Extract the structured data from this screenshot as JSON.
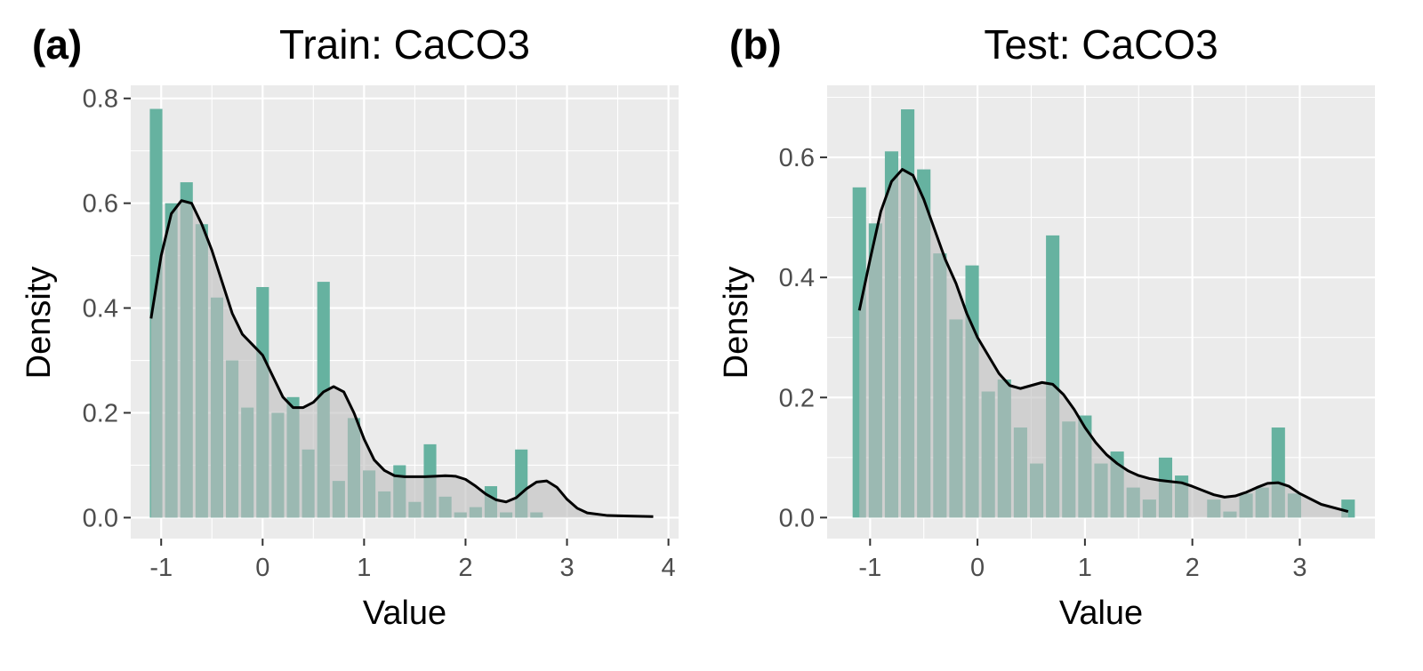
{
  "chart_data": [
    {
      "type": "bar",
      "tag": "(a)",
      "title": "Train: CaCO3",
      "xlabel": "Value",
      "ylabel": "Density",
      "xlim": [
        -1.3,
        4.1
      ],
      "ylim": [
        -0.04,
        0.825
      ],
      "xticks": [
        -1,
        0,
        1,
        2,
        3,
        4
      ],
      "xtick_labels": [
        "-1",
        "0",
        "1",
        "2",
        "3",
        "4"
      ],
      "yticks": [
        0,
        0.2,
        0.4,
        0.6,
        0.8
      ],
      "ytick_labels": [
        "0.0",
        "0.2",
        "0.4",
        "0.6",
        "0.8"
      ],
      "bin_width": 0.15,
      "bar_color": "#66b2a0",
      "fill_color": "#bebebe",
      "line_color": "#000000",
      "histogram": {
        "x": [
          -1.05,
          -0.9,
          -0.75,
          -0.6,
          -0.45,
          -0.3,
          -0.15,
          0.0,
          0.15,
          0.3,
          0.45,
          0.6,
          0.75,
          0.9,
          1.05,
          1.2,
          1.35,
          1.5,
          1.65,
          1.8,
          1.95,
          2.1,
          2.25,
          2.4,
          2.55,
          2.7,
          2.85,
          3.0
        ],
        "values": [
          0.78,
          0.6,
          0.64,
          0.56,
          0.42,
          0.3,
          0.21,
          0.44,
          0.2,
          0.23,
          0.13,
          0.45,
          0.07,
          0.19,
          0.09,
          0.05,
          0.1,
          0.03,
          0.14,
          0.04,
          0.01,
          0.02,
          0.06,
          0.01,
          0.13,
          0.01,
          0.0,
          0.0
        ]
      },
      "density": {
        "x": [
          -1.1,
          -1.0,
          -0.9,
          -0.8,
          -0.7,
          -0.6,
          -0.5,
          -0.4,
          -0.3,
          -0.2,
          -0.1,
          0.0,
          0.1,
          0.2,
          0.3,
          0.4,
          0.5,
          0.6,
          0.7,
          0.8,
          0.9,
          1.0,
          1.1,
          1.2,
          1.3,
          1.4,
          1.5,
          1.6,
          1.7,
          1.8,
          1.9,
          2.0,
          2.1,
          2.2,
          2.3,
          2.4,
          2.5,
          2.6,
          2.7,
          2.8,
          2.9,
          3.0,
          3.1,
          3.2,
          3.4,
          3.6,
          3.85
        ],
        "values": [
          0.38,
          0.5,
          0.58,
          0.605,
          0.6,
          0.56,
          0.51,
          0.45,
          0.39,
          0.35,
          0.33,
          0.31,
          0.27,
          0.23,
          0.21,
          0.21,
          0.22,
          0.24,
          0.25,
          0.24,
          0.2,
          0.15,
          0.11,
          0.09,
          0.08,
          0.078,
          0.078,
          0.078,
          0.079,
          0.08,
          0.079,
          0.073,
          0.06,
          0.045,
          0.034,
          0.03,
          0.038,
          0.055,
          0.068,
          0.07,
          0.058,
          0.035,
          0.018,
          0.009,
          0.004,
          0.003,
          0.002
        ]
      }
    },
    {
      "type": "bar",
      "tag": "(b)",
      "title": "Test: CaCO3",
      "xlabel": "Value",
      "ylabel": "Density",
      "xlim": [
        -1.4,
        3.7
      ],
      "ylim": [
        -0.035,
        0.72
      ],
      "xticks": [
        -1,
        0,
        1,
        2,
        3
      ],
      "xtick_labels": [
        "-1",
        "0",
        "1",
        "2",
        "3"
      ],
      "yticks": [
        0,
        0.2,
        0.4,
        0.6
      ],
      "ytick_labels": [
        "0.0",
        "0.2",
        "0.4",
        "0.6"
      ],
      "bin_width": 0.15,
      "bar_color": "#66b2a0",
      "fill_color": "#bebebe",
      "line_color": "#000000",
      "histogram": {
        "x": [
          -1.1,
          -0.95,
          -0.8,
          -0.65,
          -0.5,
          -0.35,
          -0.2,
          -0.05,
          0.1,
          0.25,
          0.4,
          0.55,
          0.7,
          0.85,
          1.0,
          1.15,
          1.3,
          1.45,
          1.6,
          1.75,
          1.9,
          2.05,
          2.2,
          2.35,
          2.5,
          2.65,
          2.8,
          2.95,
          3.1,
          3.25,
          3.45
        ],
        "values": [
          0.55,
          0.49,
          0.61,
          0.68,
          0.58,
          0.44,
          0.33,
          0.42,
          0.21,
          0.23,
          0.15,
          0.09,
          0.47,
          0.16,
          0.17,
          0.09,
          0.11,
          0.05,
          0.03,
          0.1,
          0.07,
          0.0,
          0.03,
          0.01,
          0.04,
          0.05,
          0.15,
          0.04,
          0.0,
          0.0,
          0.03
        ]
      },
      "density": {
        "x": [
          -1.1,
          -1.0,
          -0.9,
          -0.8,
          -0.7,
          -0.6,
          -0.5,
          -0.4,
          -0.3,
          -0.2,
          -0.1,
          0.0,
          0.1,
          0.2,
          0.3,
          0.4,
          0.5,
          0.6,
          0.7,
          0.8,
          0.9,
          1.0,
          1.1,
          1.2,
          1.3,
          1.4,
          1.5,
          1.6,
          1.7,
          1.8,
          1.9,
          2.0,
          2.1,
          2.2,
          2.3,
          2.4,
          2.5,
          2.6,
          2.7,
          2.8,
          2.9,
          3.0,
          3.2,
          3.45
        ],
        "values": [
          0.345,
          0.43,
          0.51,
          0.56,
          0.58,
          0.57,
          0.53,
          0.48,
          0.43,
          0.39,
          0.34,
          0.3,
          0.27,
          0.24,
          0.22,
          0.215,
          0.22,
          0.225,
          0.222,
          0.205,
          0.18,
          0.15,
          0.125,
          0.105,
          0.09,
          0.078,
          0.07,
          0.065,
          0.062,
          0.06,
          0.058,
          0.052,
          0.045,
          0.038,
          0.034,
          0.036,
          0.042,
          0.05,
          0.057,
          0.058,
          0.052,
          0.04,
          0.022,
          0.01
        ]
      }
    }
  ]
}
